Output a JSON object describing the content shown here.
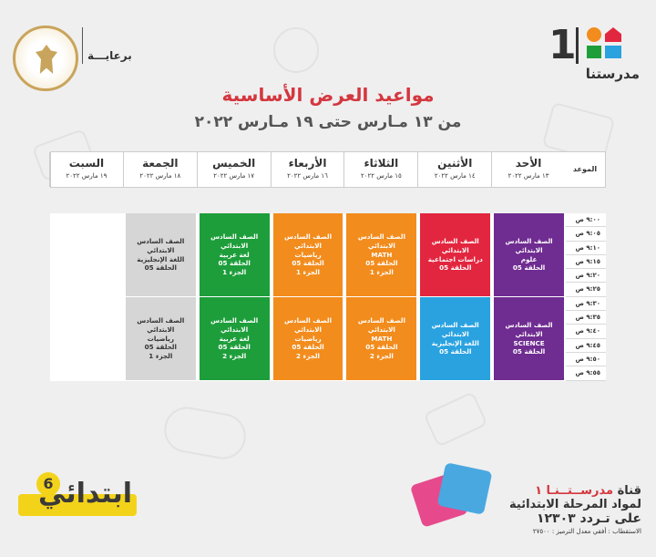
{
  "header": {
    "brand_number": "1",
    "brand_name": "مدرستنا",
    "sponsor_label": "برعايـــة",
    "title": "مواعيد العرض الأساسية",
    "subtitle": "من ١٣ مـارس حتى ١٩ مـارس ٢٠٢٢"
  },
  "schedule": {
    "time_header": "الموعد",
    "days": [
      {
        "day": "الأحد",
        "date": "١٣ مارس ٢٠٢٢"
      },
      {
        "day": "الأثنين",
        "date": "١٤ مارس ٢٠٢٢"
      },
      {
        "day": "الثلاثاء",
        "date": "١٥ مارس ٢٠٢٢"
      },
      {
        "day": "الأربعاء",
        "date": "١٦ مارس ٢٠٢٢"
      },
      {
        "day": "الخميس",
        "date": "١٧ مارس ٢٠٢٢"
      },
      {
        "day": "الجمعة",
        "date": "١٨ مارس ٢٠٢٢"
      },
      {
        "day": "السبت",
        "date": "١٩ مارس ٢٠٢٢"
      }
    ],
    "times": [
      "٩:٠٠ ص",
      "٩:٠٥ ص",
      "٩:١٠ ص",
      "٩:١٥ ص",
      "٩:٢٠ ص",
      "٩:٢٥ ص",
      "٩:٣٠ ص",
      "٩:٣٥ ص",
      "٩:٤٠ ص",
      "٩:٤٥ ص",
      "٩:٥٠ ص",
      "٩:٥٥ ص"
    ],
    "blocks": [
      {
        "day": 0,
        "slot": 0,
        "color": "#6f2c91",
        "lines": [
          "الصف السادس الابتدائي",
          "علوم",
          "الحلقة 05"
        ]
      },
      {
        "day": 0,
        "slot": 1,
        "color": "#6f2c91",
        "lines": [
          "الصف السادس الابتدائي",
          "SCIENCE",
          "الحلقة 05"
        ]
      },
      {
        "day": 1,
        "slot": 0,
        "color": "#e3263f",
        "lines": [
          "الصف السادس الابتدائي",
          "دراسات اجتماعية",
          "الحلقة 05"
        ]
      },
      {
        "day": 1,
        "slot": 1,
        "color": "#2aa2e0",
        "lines": [
          "الصف السادس الابتدائي",
          "اللغة الإنجليزية",
          "الحلقة 05"
        ]
      },
      {
        "day": 2,
        "slot": 0,
        "color": "#f28c1d",
        "lines": [
          "الصف السادس الابتدائي",
          "MATH",
          "الحلقة 05",
          "الجزء 1"
        ]
      },
      {
        "day": 2,
        "slot": 1,
        "color": "#f28c1d",
        "lines": [
          "الصف السادس الابتدائي",
          "MATH",
          "الحلقة 05",
          "الجزء 2"
        ]
      },
      {
        "day": 3,
        "slot": 0,
        "color": "#f28c1d",
        "lines": [
          "الصف السادس الابتدائي",
          "رياضيات",
          "الحلقة 05",
          "الجزء 1"
        ]
      },
      {
        "day": 3,
        "slot": 1,
        "color": "#f28c1d",
        "lines": [
          "الصف السادس الابتدائي",
          "رياضيات",
          "الحلقة 05",
          "الجزء 2"
        ]
      },
      {
        "day": 4,
        "slot": 0,
        "color": "#1e9e3b",
        "lines": [
          "الصف السادس الابتدائي",
          "لغة عربية",
          "الحلقة 05",
          "الجزء 1"
        ]
      },
      {
        "day": 4,
        "slot": 1,
        "color": "#1e9e3b",
        "lines": [
          "الصف السادس الابتدائي",
          "لغة عربية",
          "الحلقة 05",
          "الجزء 2"
        ]
      },
      {
        "day": 5,
        "slot": 0,
        "color": "#d6d6d6",
        "lines": [
          "الصف السادس الابتدائي",
          "اللغة الإنجليزية",
          "الحلقة 05"
        ]
      },
      {
        "day": 5,
        "slot": 1,
        "color": "#d6d6d6",
        "lines": [
          "الصف السادس الابتدائي",
          "رياضيات",
          "الحلقة 05",
          "الجزء 1"
        ]
      }
    ]
  },
  "promo": {
    "line1_prefix": "قناة",
    "line1_accent": "مدرســتــنـا ١",
    "line2": "لمواد المرحلة الابتدائية",
    "line3": "على تـردد ١٢٣٠٣",
    "line4": "الاستقطاب : أفقي معدل الترميز : ٢٧٥٠٠"
  },
  "badge": {
    "word": "ابتدائي",
    "number": "6"
  }
}
